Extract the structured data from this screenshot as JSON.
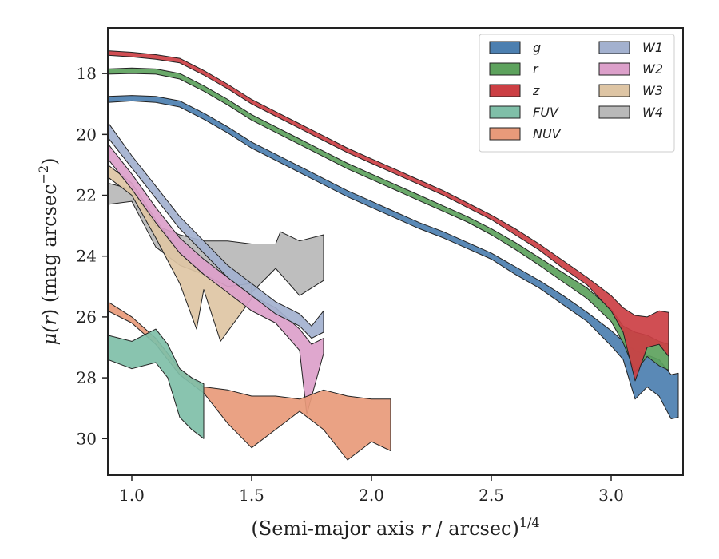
{
  "chart_data": {
    "type": "area",
    "xlabel_main": "(Semi-major axis ",
    "xlabel_var": "r",
    "xlabel_unit": " / arcsec)",
    "xlabel_exp": "1/4",
    "ylabel_main": "μ(",
    "ylabel_var": "r",
    "ylabel_unit": ") (mag arcsec",
    "ylabel_exp": "−2",
    "ylabel_close": ")",
    "xlim": [
      0.9,
      3.3
    ],
    "ylim": [
      31.2,
      16.5
    ],
    "y_inverted": true,
    "xticks": [
      1.0,
      1.5,
      2.0,
      2.5,
      3.0
    ],
    "xtick_labels": [
      "1.0",
      "1.5",
      "2.0",
      "2.5",
      "3.0"
    ],
    "yticks": [
      18,
      20,
      22,
      24,
      26,
      28,
      30
    ],
    "ytick_labels": [
      "18",
      "20",
      "22",
      "24",
      "26",
      "28",
      "30"
    ],
    "grid": false,
    "legend_position": "top-right",
    "legend_columns": 2,
    "series": [
      {
        "name": "g",
        "color": "#4c7fb0",
        "upper": [
          [
            0.9,
            18.75
          ],
          [
            1.0,
            18.72
          ],
          [
            1.1,
            18.75
          ],
          [
            1.2,
            18.9
          ],
          [
            1.3,
            19.3
          ],
          [
            1.4,
            19.75
          ],
          [
            1.5,
            20.25
          ],
          [
            1.6,
            20.65
          ],
          [
            1.7,
            21.05
          ],
          [
            1.8,
            21.45
          ],
          [
            1.9,
            21.85
          ],
          [
            2.0,
            22.2
          ],
          [
            2.1,
            22.55
          ],
          [
            2.2,
            22.9
          ],
          [
            2.3,
            23.2
          ],
          [
            2.4,
            23.55
          ],
          [
            2.5,
            23.9
          ],
          [
            2.6,
            24.35
          ],
          [
            2.7,
            24.8
          ],
          [
            2.8,
            25.3
          ],
          [
            2.9,
            25.85
          ],
          [
            3.0,
            26.45
          ],
          [
            3.05,
            26.8
          ],
          [
            3.1,
            27.1
          ],
          [
            3.15,
            27.25
          ],
          [
            3.2,
            27.4
          ],
          [
            3.25,
            27.9
          ],
          [
            3.28,
            27.85
          ]
        ],
        "lower": [
          [
            0.9,
            18.95
          ],
          [
            1.0,
            18.9
          ],
          [
            1.1,
            18.95
          ],
          [
            1.2,
            19.1
          ],
          [
            1.3,
            19.5
          ],
          [
            1.4,
            19.95
          ],
          [
            1.5,
            20.45
          ],
          [
            1.6,
            20.85
          ],
          [
            1.7,
            21.25
          ],
          [
            1.8,
            21.65
          ],
          [
            1.9,
            22.05
          ],
          [
            2.0,
            22.4
          ],
          [
            2.1,
            22.75
          ],
          [
            2.2,
            23.1
          ],
          [
            2.3,
            23.4
          ],
          [
            2.4,
            23.75
          ],
          [
            2.5,
            24.1
          ],
          [
            2.6,
            24.6
          ],
          [
            2.7,
            25.05
          ],
          [
            2.8,
            25.6
          ],
          [
            2.9,
            26.15
          ],
          [
            3.0,
            26.95
          ],
          [
            3.05,
            27.4
          ],
          [
            3.1,
            28.7
          ],
          [
            3.15,
            28.3
          ],
          [
            3.2,
            28.6
          ],
          [
            3.25,
            29.35
          ],
          [
            3.28,
            29.3
          ]
        ]
      },
      {
        "name": "r",
        "color": "#5da25d",
        "upper": [
          [
            0.9,
            17.85
          ],
          [
            1.0,
            17.82
          ],
          [
            1.1,
            17.85
          ],
          [
            1.2,
            18.0
          ],
          [
            1.3,
            18.4
          ],
          [
            1.4,
            18.85
          ],
          [
            1.5,
            19.35
          ],
          [
            1.6,
            19.75
          ],
          [
            1.7,
            20.15
          ],
          [
            1.8,
            20.55
          ],
          [
            1.9,
            20.95
          ],
          [
            2.0,
            21.3
          ],
          [
            2.1,
            21.65
          ],
          [
            2.2,
            22.0
          ],
          [
            2.3,
            22.35
          ],
          [
            2.4,
            22.7
          ],
          [
            2.5,
            23.1
          ],
          [
            2.6,
            23.55
          ],
          [
            2.7,
            24.05
          ],
          [
            2.8,
            24.55
          ],
          [
            2.9,
            25.05
          ],
          [
            3.0,
            25.75
          ],
          [
            3.05,
            26.3
          ],
          [
            3.1,
            26.5
          ],
          [
            3.15,
            26.6
          ],
          [
            3.2,
            26.8
          ],
          [
            3.24,
            26.9
          ]
        ],
        "lower": [
          [
            0.9,
            18.02
          ],
          [
            1.0,
            18.0
          ],
          [
            1.1,
            18.02
          ],
          [
            1.2,
            18.18
          ],
          [
            1.3,
            18.58
          ],
          [
            1.4,
            19.03
          ],
          [
            1.5,
            19.53
          ],
          [
            1.6,
            19.93
          ],
          [
            1.7,
            20.33
          ],
          [
            1.8,
            20.73
          ],
          [
            1.9,
            21.13
          ],
          [
            2.0,
            21.48
          ],
          [
            2.1,
            21.83
          ],
          [
            2.2,
            22.18
          ],
          [
            2.3,
            22.53
          ],
          [
            2.4,
            22.88
          ],
          [
            2.5,
            23.3
          ],
          [
            2.6,
            23.78
          ],
          [
            2.7,
            24.3
          ],
          [
            2.8,
            24.85
          ],
          [
            2.9,
            25.4
          ],
          [
            3.0,
            26.15
          ],
          [
            3.05,
            26.85
          ],
          [
            3.1,
            27.8
          ],
          [
            3.15,
            27.3
          ],
          [
            3.2,
            27.6
          ],
          [
            3.24,
            27.75
          ]
        ]
      },
      {
        "name": "z",
        "color": "#cc3f44",
        "upper": [
          [
            0.9,
            17.25
          ],
          [
            1.0,
            17.3
          ],
          [
            1.1,
            17.38
          ],
          [
            1.2,
            17.5
          ],
          [
            1.3,
            17.9
          ],
          [
            1.4,
            18.35
          ],
          [
            1.5,
            18.85
          ],
          [
            1.6,
            19.25
          ],
          [
            1.7,
            19.65
          ],
          [
            1.8,
            20.05
          ],
          [
            1.9,
            20.45
          ],
          [
            2.0,
            20.8
          ],
          [
            2.1,
            21.15
          ],
          [
            2.2,
            21.5
          ],
          [
            2.3,
            21.85
          ],
          [
            2.4,
            22.25
          ],
          [
            2.5,
            22.65
          ],
          [
            2.6,
            23.1
          ],
          [
            2.7,
            23.6
          ],
          [
            2.8,
            24.15
          ],
          [
            2.9,
            24.7
          ],
          [
            3.0,
            25.3
          ],
          [
            3.05,
            25.7
          ],
          [
            3.1,
            25.95
          ],
          [
            3.15,
            26.0
          ],
          [
            3.2,
            25.8
          ],
          [
            3.24,
            25.85
          ]
        ],
        "lower": [
          [
            0.9,
            17.4
          ],
          [
            1.0,
            17.45
          ],
          [
            1.1,
            17.53
          ],
          [
            1.2,
            17.65
          ],
          [
            1.3,
            18.05
          ],
          [
            1.4,
            18.5
          ],
          [
            1.5,
            19.0
          ],
          [
            1.6,
            19.4
          ],
          [
            1.7,
            19.8
          ],
          [
            1.8,
            20.2
          ],
          [
            1.9,
            20.6
          ],
          [
            2.0,
            20.95
          ],
          [
            2.1,
            21.3
          ],
          [
            2.2,
            21.65
          ],
          [
            2.3,
            22.0
          ],
          [
            2.4,
            22.4
          ],
          [
            2.5,
            22.8
          ],
          [
            2.6,
            23.3
          ],
          [
            2.7,
            23.8
          ],
          [
            2.8,
            24.4
          ],
          [
            2.9,
            24.95
          ],
          [
            3.0,
            25.8
          ],
          [
            3.05,
            26.5
          ],
          [
            3.1,
            28.1
          ],
          [
            3.15,
            27.0
          ],
          [
            3.2,
            26.9
          ],
          [
            3.24,
            27.3
          ]
        ]
      },
      {
        "name": "FUV",
        "color": "#7fbfa8",
        "upper": [
          [
            0.9,
            26.6
          ],
          [
            1.0,
            26.8
          ],
          [
            1.1,
            26.4
          ],
          [
            1.15,
            26.9
          ],
          [
            1.2,
            27.7
          ],
          [
            1.25,
            28.0
          ],
          [
            1.3,
            28.2
          ]
        ],
        "lower": [
          [
            0.9,
            27.4
          ],
          [
            1.0,
            27.7
          ],
          [
            1.1,
            27.5
          ],
          [
            1.15,
            28.0
          ],
          [
            1.2,
            29.3
          ],
          [
            1.25,
            29.7
          ],
          [
            1.3,
            30.0
          ]
        ]
      },
      {
        "name": "NUV",
        "color": "#e89a7a",
        "upper": [
          [
            0.9,
            25.5
          ],
          [
            1.0,
            26.0
          ],
          [
            1.1,
            26.7
          ],
          [
            1.2,
            27.7
          ],
          [
            1.3,
            28.3
          ],
          [
            1.4,
            28.4
          ],
          [
            1.5,
            28.6
          ],
          [
            1.6,
            28.6
          ],
          [
            1.7,
            28.7
          ],
          [
            1.8,
            28.4
          ],
          [
            1.9,
            28.6
          ],
          [
            2.0,
            28.7
          ],
          [
            2.08,
            28.7
          ]
        ],
        "lower": [
          [
            0.9,
            25.8
          ],
          [
            1.0,
            26.2
          ],
          [
            1.1,
            26.9
          ],
          [
            1.2,
            27.9
          ],
          [
            1.3,
            28.5
          ],
          [
            1.4,
            29.5
          ],
          [
            1.5,
            30.3
          ],
          [
            1.6,
            29.7
          ],
          [
            1.7,
            29.1
          ],
          [
            1.8,
            29.7
          ],
          [
            1.9,
            30.7
          ],
          [
            2.0,
            30.1
          ],
          [
            2.08,
            30.4
          ]
        ]
      },
      {
        "name": "W1",
        "color": "#a3b1cf",
        "upper": [
          [
            0.9,
            19.6
          ],
          [
            1.0,
            20.7
          ],
          [
            1.1,
            21.7
          ],
          [
            1.2,
            22.7
          ],
          [
            1.3,
            23.5
          ],
          [
            1.4,
            24.3
          ],
          [
            1.5,
            24.9
          ],
          [
            1.6,
            25.5
          ],
          [
            1.7,
            25.9
          ],
          [
            1.75,
            26.3
          ],
          [
            1.8,
            25.8
          ]
        ],
        "lower": [
          [
            0.9,
            20.1
          ],
          [
            1.0,
            21.1
          ],
          [
            1.1,
            22.1
          ],
          [
            1.2,
            23.1
          ],
          [
            1.3,
            23.9
          ],
          [
            1.4,
            24.7
          ],
          [
            1.5,
            25.3
          ],
          [
            1.6,
            25.9
          ],
          [
            1.7,
            26.3
          ],
          [
            1.75,
            26.7
          ],
          [
            1.8,
            26.5
          ]
        ]
      },
      {
        "name": "W2",
        "color": "#dca0ca",
        "upper": [
          [
            0.9,
            20.3
          ],
          [
            1.0,
            21.3
          ],
          [
            1.1,
            22.4
          ],
          [
            1.2,
            23.4
          ],
          [
            1.3,
            24.1
          ],
          [
            1.4,
            24.7
          ],
          [
            1.5,
            25.3
          ],
          [
            1.6,
            25.7
          ],
          [
            1.7,
            26.4
          ],
          [
            1.75,
            26.9
          ],
          [
            1.8,
            26.7
          ]
        ],
        "lower": [
          [
            0.9,
            20.8
          ],
          [
            1.0,
            21.8
          ],
          [
            1.1,
            22.9
          ],
          [
            1.2,
            23.9
          ],
          [
            1.3,
            24.6
          ],
          [
            1.4,
            25.2
          ],
          [
            1.5,
            25.8
          ],
          [
            1.6,
            26.2
          ],
          [
            1.7,
            27.1
          ],
          [
            1.73,
            29.2
          ],
          [
            1.8,
            27.2
          ]
        ]
      },
      {
        "name": "W3",
        "color": "#dec5a4",
        "upper": [
          [
            0.9,
            21.0
          ],
          [
            1.0,
            21.6
          ],
          [
            1.1,
            22.8
          ],
          [
            1.2,
            23.9
          ],
          [
            1.3,
            24.6
          ],
          [
            1.4,
            25.0
          ],
          [
            1.5,
            24.9
          ]
        ],
        "lower": [
          [
            0.9,
            21.4
          ],
          [
            1.0,
            22.0
          ],
          [
            1.1,
            23.4
          ],
          [
            1.2,
            24.9
          ],
          [
            1.27,
            26.4
          ],
          [
            1.3,
            25.1
          ],
          [
            1.37,
            26.8
          ],
          [
            1.5,
            25.4
          ]
        ]
      },
      {
        "name": "W4",
        "color": "#b9b9b9",
        "upper": [
          [
            0.9,
            21.6
          ],
          [
            1.0,
            21.8
          ],
          [
            1.1,
            23.0
          ],
          [
            1.2,
            23.3
          ],
          [
            1.3,
            23.5
          ],
          [
            1.4,
            23.5
          ],
          [
            1.5,
            23.6
          ],
          [
            1.6,
            23.6
          ],
          [
            1.62,
            23.2
          ],
          [
            1.7,
            23.5
          ],
          [
            1.8,
            23.3
          ]
        ],
        "lower": [
          [
            0.9,
            22.3
          ],
          [
            1.0,
            22.2
          ],
          [
            1.1,
            23.7
          ],
          [
            1.2,
            24.3
          ],
          [
            1.3,
            24.6
          ],
          [
            1.4,
            25.0
          ],
          [
            1.5,
            25.2
          ],
          [
            1.6,
            24.4
          ],
          [
            1.7,
            25.3
          ],
          [
            1.8,
            24.8
          ]
        ]
      }
    ]
  }
}
